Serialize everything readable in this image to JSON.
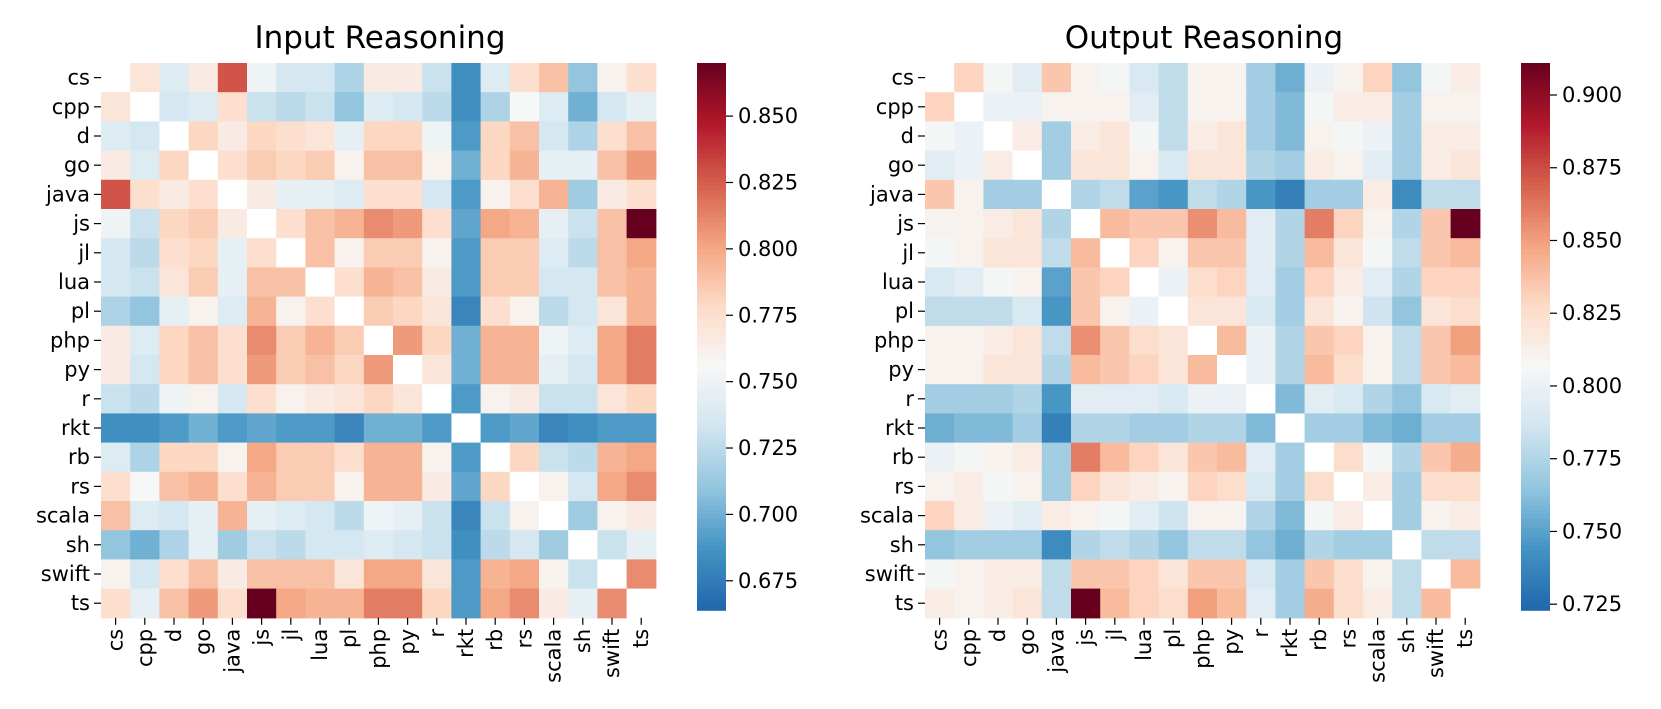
{
  "labels": [
    "cs",
    "cpp",
    "d",
    "go",
    "java",
    "js",
    "jl",
    "lua",
    "pl",
    "php",
    "py",
    "r",
    "rkt",
    "rb",
    "rs",
    "scala",
    "sh",
    "swift",
    "ts"
  ],
  "colormap": {
    "name": "RdBu_r",
    "stops": [
      "#2166ac",
      "#4393c3",
      "#92c5de",
      "#d1e5f0",
      "#f7f7f7",
      "#fddbc7",
      "#f4a582",
      "#d6604d",
      "#b2182b",
      "#67001f"
    ]
  },
  "chart_data": [
    {
      "type": "heatmap",
      "title": "Input Reasoning",
      "xlabel": "",
      "ylabel": "",
      "vmin": 0.664,
      "vmax": 0.87,
      "colorbar_ticks": [
        0.675,
        0.7,
        0.725,
        0.75,
        0.775,
        0.8,
        0.825,
        0.85
      ],
      "colorbar_ticklabels": [
        "0.675",
        "0.700",
        "0.725",
        "0.750",
        "0.775",
        "0.800",
        "0.825",
        "0.850"
      ],
      "rows": [
        "cs",
        "cpp",
        "d",
        "go",
        "java",
        "js",
        "jl",
        "lua",
        "pl",
        "php",
        "py",
        "r",
        "rkt",
        "rb",
        "rs",
        "scala",
        "sh",
        "swift",
        "ts"
      ],
      "cols": [
        "cs",
        "cpp",
        "d",
        "go",
        "java",
        "js",
        "jl",
        "lua",
        "pl",
        "php",
        "py",
        "r",
        "rkt",
        "rb",
        "rs",
        "scala",
        "sh",
        "swift",
        "ts"
      ],
      "values": [
        [
          null,
          0.77,
          0.74,
          0.765,
          0.828,
          0.75,
          0.735,
          0.735,
          0.72,
          0.765,
          0.765,
          0.73,
          0.685,
          0.74,
          0.775,
          0.79,
          0.71,
          0.76,
          0.775
        ],
        [
          0.77,
          null,
          0.735,
          0.74,
          0.775,
          0.73,
          0.725,
          0.73,
          0.71,
          0.74,
          0.735,
          0.725,
          0.685,
          0.72,
          0.755,
          0.74,
          0.7,
          0.735,
          0.745
        ],
        [
          0.74,
          0.735,
          null,
          0.78,
          0.765,
          0.78,
          0.775,
          0.77,
          0.745,
          0.78,
          0.78,
          0.75,
          0.69,
          0.78,
          0.79,
          0.735,
          0.72,
          0.775,
          0.79
        ],
        [
          0.765,
          0.74,
          0.78,
          null,
          0.775,
          0.785,
          0.78,
          0.785,
          0.76,
          0.79,
          0.79,
          0.76,
          0.7,
          0.78,
          0.795,
          0.745,
          0.745,
          0.79,
          0.805
        ],
        [
          0.828,
          0.775,
          0.765,
          0.775,
          null,
          0.765,
          0.745,
          0.745,
          0.74,
          0.775,
          0.775,
          0.735,
          0.69,
          0.76,
          0.775,
          0.795,
          0.715,
          0.765,
          0.775
        ],
        [
          0.75,
          0.73,
          0.78,
          0.785,
          0.765,
          null,
          0.775,
          0.79,
          0.795,
          0.81,
          0.805,
          0.775,
          0.695,
          0.8,
          0.795,
          0.745,
          0.73,
          0.79,
          0.87
        ],
        [
          0.735,
          0.725,
          0.775,
          0.78,
          0.745,
          0.775,
          null,
          0.79,
          0.76,
          0.785,
          0.785,
          0.76,
          0.69,
          0.785,
          0.785,
          0.74,
          0.725,
          0.79,
          0.8
        ],
        [
          0.735,
          0.73,
          0.77,
          0.785,
          0.745,
          0.79,
          0.79,
          null,
          0.775,
          0.795,
          0.79,
          0.765,
          0.69,
          0.785,
          0.785,
          0.735,
          0.735,
          0.79,
          0.795
        ],
        [
          0.72,
          0.71,
          0.745,
          0.76,
          0.74,
          0.795,
          0.76,
          0.775,
          null,
          0.785,
          0.78,
          0.77,
          0.68,
          0.775,
          0.76,
          0.725,
          0.735,
          0.77,
          0.795
        ],
        [
          0.765,
          0.74,
          0.78,
          0.79,
          0.775,
          0.81,
          0.785,
          0.795,
          0.785,
          null,
          0.805,
          0.78,
          0.7,
          0.795,
          0.795,
          0.75,
          0.74,
          0.8,
          0.815
        ],
        [
          0.765,
          0.735,
          0.78,
          0.79,
          0.775,
          0.805,
          0.785,
          0.79,
          0.78,
          0.805,
          null,
          0.77,
          0.7,
          0.795,
          0.795,
          0.745,
          0.735,
          0.8,
          0.815
        ],
        [
          0.73,
          0.725,
          0.75,
          0.76,
          0.735,
          0.775,
          0.76,
          0.765,
          0.77,
          0.78,
          0.77,
          null,
          0.69,
          0.76,
          0.765,
          0.73,
          0.73,
          0.77,
          0.78
        ],
        [
          0.685,
          0.685,
          0.69,
          0.7,
          0.69,
          0.695,
          0.69,
          0.69,
          0.68,
          0.7,
          0.7,
          0.69,
          null,
          0.69,
          0.695,
          0.68,
          0.685,
          0.69,
          0.69
        ],
        [
          0.74,
          0.72,
          0.78,
          0.78,
          0.76,
          0.8,
          0.785,
          0.785,
          0.775,
          0.795,
          0.795,
          0.76,
          0.69,
          null,
          0.78,
          0.73,
          0.725,
          0.795,
          0.8
        ],
        [
          0.775,
          0.755,
          0.79,
          0.795,
          0.775,
          0.795,
          0.785,
          0.785,
          0.76,
          0.795,
          0.795,
          0.765,
          0.695,
          0.78,
          null,
          0.76,
          0.735,
          0.8,
          0.81
        ],
        [
          0.79,
          0.74,
          0.735,
          0.745,
          0.795,
          0.745,
          0.74,
          0.735,
          0.725,
          0.75,
          0.745,
          0.73,
          0.68,
          0.73,
          0.76,
          null,
          0.715,
          0.76,
          0.765
        ],
        [
          0.71,
          0.7,
          0.72,
          0.745,
          0.715,
          0.73,
          0.725,
          0.735,
          0.735,
          0.74,
          0.735,
          0.73,
          0.685,
          0.725,
          0.735,
          0.715,
          null,
          0.73,
          0.745
        ],
        [
          0.76,
          0.735,
          0.775,
          0.79,
          0.765,
          0.79,
          0.79,
          0.79,
          0.77,
          0.8,
          0.8,
          0.77,
          0.69,
          0.795,
          0.8,
          0.76,
          0.73,
          null,
          0.81
        ],
        [
          0.775,
          0.745,
          0.79,
          0.805,
          0.775,
          0.87,
          0.8,
          0.795,
          0.795,
          0.815,
          0.815,
          0.78,
          0.69,
          0.8,
          0.81,
          0.765,
          0.745,
          0.81,
          null
        ]
      ]
    },
    {
      "type": "heatmap",
      "title": "Output Reasoning",
      "xlabel": "",
      "ylabel": "",
      "vmin": 0.723,
      "vmax": 0.911,
      "colorbar_ticks": [
        0.725,
        0.75,
        0.775,
        0.8,
        0.825,
        0.85,
        0.875,
        0.9
      ],
      "colorbar_ticklabels": [
        "0.725",
        "0.750",
        "0.775",
        "0.800",
        "0.825",
        "0.850",
        "0.875",
        "0.900"
      ],
      "rows": [
        "cs",
        "cpp",
        "d",
        "go",
        "java",
        "js",
        "jl",
        "lua",
        "pl",
        "php",
        "py",
        "r",
        "rkt",
        "rb",
        "rs",
        "scala",
        "sh",
        "swift",
        "ts"
      ],
      "cols": [
        "cs",
        "cpp",
        "d",
        "go",
        "java",
        "js",
        "jl",
        "lua",
        "pl",
        "php",
        "py",
        "r",
        "rkt",
        "rb",
        "rs",
        "scala",
        "sh",
        "swift",
        "ts"
      ],
      "values": [
        [
          null,
          0.83,
          0.805,
          0.795,
          0.835,
          0.81,
          0.805,
          0.79,
          0.78,
          0.81,
          0.81,
          0.77,
          0.755,
          0.8,
          0.81,
          0.83,
          0.765,
          0.805,
          0.815
        ],
        [
          0.83,
          null,
          0.8,
          0.8,
          0.81,
          0.81,
          0.81,
          0.795,
          0.78,
          0.81,
          0.81,
          0.77,
          0.76,
          0.805,
          0.815,
          0.815,
          0.77,
          0.81,
          0.81
        ],
        [
          0.805,
          0.8,
          null,
          0.815,
          0.77,
          0.815,
          0.82,
          0.805,
          0.78,
          0.815,
          0.82,
          0.77,
          0.76,
          0.81,
          0.805,
          0.8,
          0.77,
          0.815,
          0.815
        ],
        [
          0.795,
          0.8,
          0.815,
          null,
          0.77,
          0.82,
          0.82,
          0.81,
          0.79,
          0.82,
          0.82,
          0.775,
          0.77,
          0.815,
          0.81,
          0.795,
          0.77,
          0.815,
          0.82
        ],
        [
          0.835,
          0.81,
          0.77,
          0.77,
          null,
          0.775,
          0.78,
          0.75,
          0.745,
          0.78,
          0.775,
          0.745,
          0.735,
          0.77,
          0.77,
          0.815,
          0.74,
          0.78,
          0.78
        ],
        [
          0.81,
          0.81,
          0.815,
          0.82,
          0.775,
          null,
          0.84,
          0.835,
          0.835,
          0.855,
          0.84,
          0.795,
          0.775,
          0.86,
          0.83,
          0.81,
          0.775,
          0.835,
          0.911
        ],
        [
          0.805,
          0.81,
          0.82,
          0.82,
          0.78,
          0.84,
          null,
          0.83,
          0.81,
          0.835,
          0.835,
          0.795,
          0.775,
          0.84,
          0.82,
          0.805,
          0.78,
          0.835,
          0.84
        ],
        [
          0.79,
          0.795,
          0.805,
          0.81,
          0.75,
          0.835,
          0.83,
          null,
          0.8,
          0.825,
          0.83,
          0.795,
          0.77,
          0.83,
          0.815,
          0.795,
          0.775,
          0.83,
          0.83
        ],
        [
          0.78,
          0.78,
          0.78,
          0.79,
          0.745,
          0.835,
          0.81,
          0.8,
          null,
          0.82,
          0.82,
          0.79,
          0.77,
          0.82,
          0.81,
          0.785,
          0.765,
          0.82,
          0.825
        ],
        [
          0.81,
          0.81,
          0.815,
          0.82,
          0.78,
          0.855,
          0.835,
          0.825,
          0.82,
          null,
          0.84,
          0.8,
          0.775,
          0.835,
          0.83,
          0.81,
          0.78,
          0.835,
          0.85
        ],
        [
          0.81,
          0.81,
          0.82,
          0.82,
          0.775,
          0.84,
          0.835,
          0.83,
          0.82,
          0.84,
          null,
          0.8,
          0.775,
          0.84,
          0.825,
          0.81,
          0.78,
          0.835,
          0.84
        ],
        [
          0.77,
          0.77,
          0.77,
          0.775,
          0.745,
          0.795,
          0.795,
          0.795,
          0.79,
          0.8,
          0.8,
          null,
          0.76,
          0.795,
          0.79,
          0.775,
          0.765,
          0.79,
          0.795
        ],
        [
          0.755,
          0.76,
          0.76,
          0.77,
          0.735,
          0.775,
          0.775,
          0.77,
          0.77,
          0.775,
          0.775,
          0.76,
          null,
          0.77,
          0.77,
          0.76,
          0.755,
          0.77,
          0.77
        ],
        [
          0.8,
          0.805,
          0.81,
          0.815,
          0.77,
          0.86,
          0.84,
          0.83,
          0.82,
          0.835,
          0.84,
          0.795,
          0.77,
          null,
          0.825,
          0.805,
          0.775,
          0.835,
          0.845
        ],
        [
          0.81,
          0.815,
          0.805,
          0.81,
          0.77,
          0.83,
          0.82,
          0.815,
          0.81,
          0.83,
          0.825,
          0.79,
          0.77,
          0.825,
          null,
          0.815,
          0.77,
          0.825,
          0.825
        ],
        [
          0.83,
          0.815,
          0.8,
          0.795,
          0.815,
          0.81,
          0.805,
          0.795,
          0.785,
          0.81,
          0.81,
          0.775,
          0.76,
          0.805,
          0.815,
          null,
          0.77,
          0.81,
          0.815
        ],
        [
          0.765,
          0.77,
          0.77,
          0.77,
          0.74,
          0.775,
          0.78,
          0.775,
          0.765,
          0.78,
          0.78,
          0.765,
          0.755,
          0.775,
          0.77,
          0.77,
          null,
          0.78,
          0.78
        ],
        [
          0.805,
          0.81,
          0.815,
          0.815,
          0.78,
          0.835,
          0.835,
          0.83,
          0.82,
          0.835,
          0.835,
          0.79,
          0.77,
          0.835,
          0.825,
          0.81,
          0.78,
          null,
          0.84
        ],
        [
          0.815,
          0.81,
          0.815,
          0.82,
          0.78,
          0.911,
          0.84,
          0.83,
          0.825,
          0.85,
          0.84,
          0.795,
          0.77,
          0.845,
          0.825,
          0.815,
          0.78,
          0.84,
          null
        ]
      ]
    }
  ]
}
